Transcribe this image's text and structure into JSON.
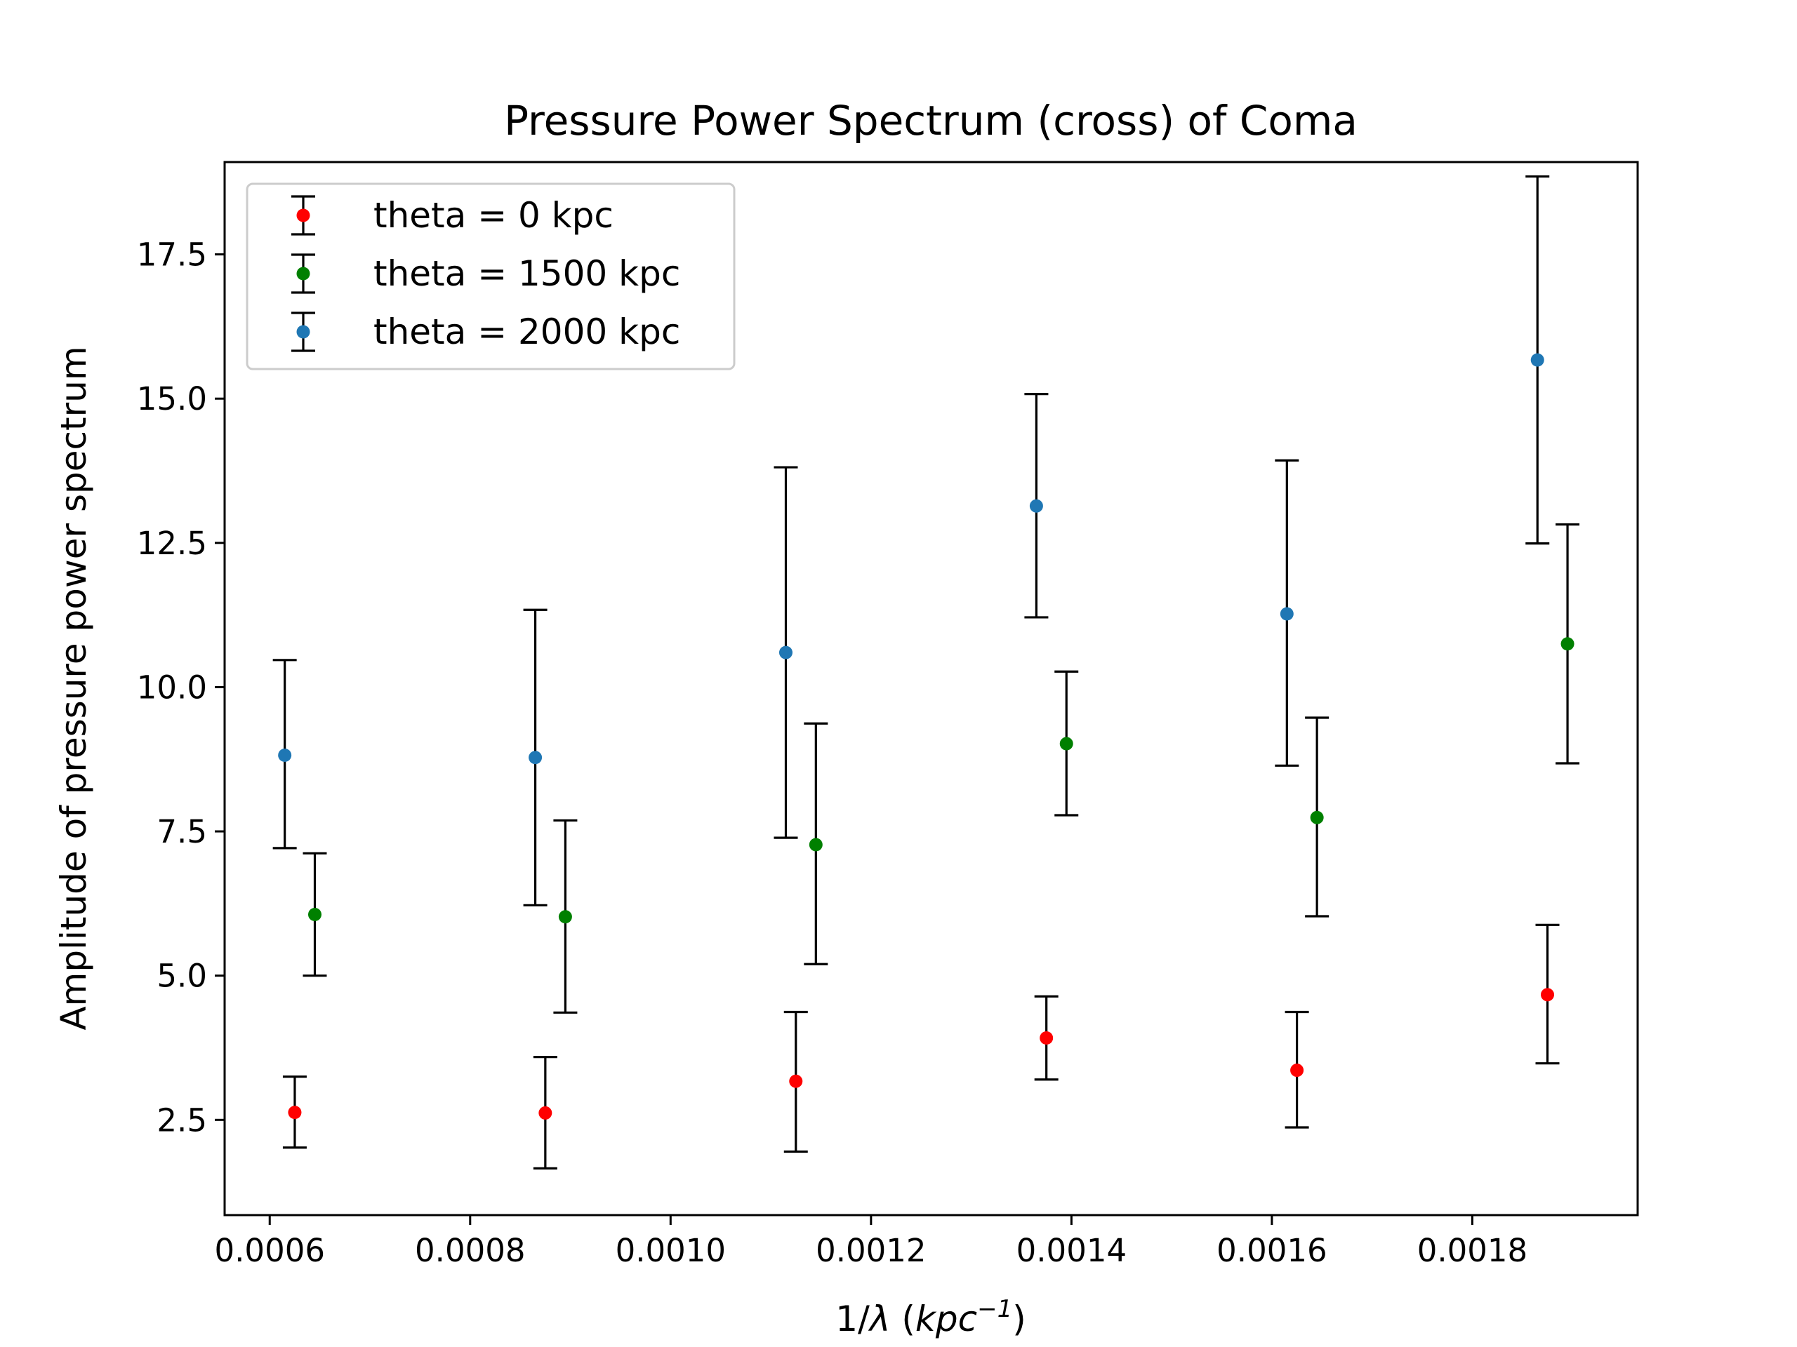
{
  "chart_data": {
    "type": "scatter",
    "title": "Pressure Power Spectrum (cross) of Coma",
    "xlabel": "1/λ (kpc⁻¹)",
    "xlabel_parts": {
      "prefix": "1/",
      "lambda": "λ",
      "open": " (",
      "unit": "kpc",
      "exp": "−1",
      "close": ")"
    },
    "ylabel": "Amplitude of pressure power spectrum",
    "xlim": [
      0.000555,
      0.001965
    ],
    "ylim": [
      0.85,
      19.1
    ],
    "x_ticks": [
      0.0006,
      0.0008,
      0.001,
      0.0012,
      0.0014,
      0.0016,
      0.0018
    ],
    "x_tick_labels": [
      "0.0006",
      "0.0008",
      "0.0010",
      "0.0012",
      "0.0014",
      "0.0016",
      "0.0018"
    ],
    "y_ticks": [
      2.5,
      5.0,
      7.5,
      10.0,
      12.5,
      15.0,
      17.5
    ],
    "y_tick_labels": [
      "2.5",
      "5.0",
      "7.5",
      "10.0",
      "12.5",
      "15.0",
      "17.5"
    ],
    "grid": false,
    "legend_placement": "top-left",
    "error_bar_color": "#000000",
    "series": [
      {
        "name": "theta = 0 kpc",
        "color": "#ff0000",
        "x": [
          0.000625,
          0.000875,
          0.001125,
          0.001375,
          0.001625,
          0.001875
        ],
        "y": [
          2.63,
          2.62,
          3.17,
          3.92,
          3.36,
          4.67
        ],
        "yerr_low": [
          2.02,
          1.66,
          1.95,
          3.2,
          2.37,
          3.48
        ],
        "yerr_high": [
          3.25,
          3.59,
          4.37,
          4.64,
          4.37,
          5.88
        ]
      },
      {
        "name": "theta = 1500 kpc",
        "color": "#008000",
        "x": [
          0.000645,
          0.000895,
          0.001145,
          0.001395,
          0.001645,
          0.001895
        ],
        "y": [
          6.06,
          6.02,
          7.27,
          9.02,
          7.74,
          10.75
        ],
        "yerr_low": [
          5.0,
          4.36,
          5.2,
          7.78,
          6.03,
          8.68
        ],
        "yerr_high": [
          7.12,
          7.69,
          9.37,
          10.27,
          9.47,
          12.82
        ]
      },
      {
        "name": "theta = 2000 kpc",
        "color": "#1f77b4",
        "x": [
          0.000615,
          0.000865,
          0.001115,
          0.001365,
          0.001615,
          0.001865
        ],
        "y": [
          8.82,
          8.78,
          10.6,
          13.14,
          11.27,
          15.67
        ],
        "yerr_low": [
          7.21,
          6.22,
          7.39,
          11.21,
          8.64,
          12.49
        ],
        "yerr_high": [
          10.47,
          11.34,
          13.81,
          15.08,
          13.93,
          18.85
        ]
      }
    ]
  }
}
